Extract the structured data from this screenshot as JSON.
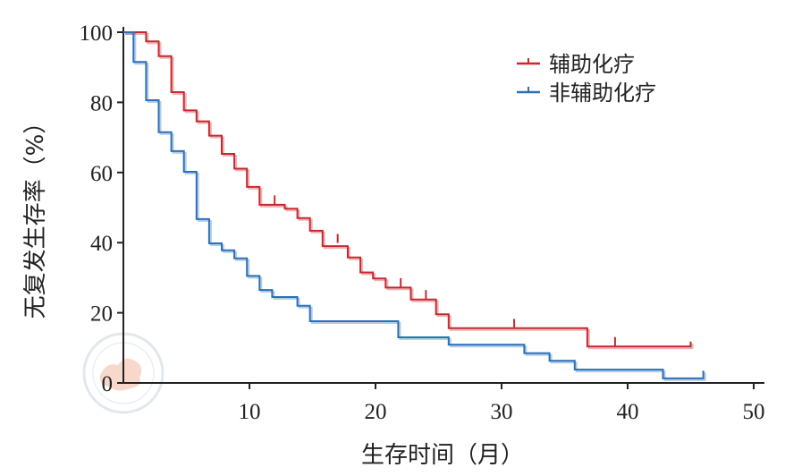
{
  "chart_data": {
    "type": "line",
    "subtype": "kaplan-meier step",
    "xlabel": "生存时间（月）",
    "ylabel": "无复发生存率（%）",
    "xlim": [
      0,
      50
    ],
    "ylim": [
      0,
      100
    ],
    "xticks": [
      10,
      20,
      30,
      40,
      50
    ],
    "yticks": [
      0,
      20,
      40,
      60,
      80,
      100
    ],
    "grid": false,
    "legend_position": "top-right",
    "series": [
      {
        "name": "辅助化疗",
        "color": "#c8282d",
        "steps": [
          [
            0,
            100
          ],
          [
            1.8,
            100
          ],
          [
            1.8,
            97.4
          ],
          [
            2.8,
            97.4
          ],
          [
            2.8,
            93.2
          ],
          [
            3.8,
            93.2
          ],
          [
            3.8,
            82.9
          ],
          [
            4.8,
            82.9
          ],
          [
            4.8,
            77.7
          ],
          [
            5.8,
            77.7
          ],
          [
            5.8,
            74.6
          ],
          [
            6.8,
            74.6
          ],
          [
            6.8,
            70.5
          ],
          [
            7.8,
            70.5
          ],
          [
            7.8,
            65.3
          ],
          [
            8.8,
            65.3
          ],
          [
            8.8,
            61.1
          ],
          [
            9.8,
            61.1
          ],
          [
            9.8,
            55.9
          ],
          [
            10.8,
            55.9
          ],
          [
            10.8,
            50.8
          ],
          [
            12.8,
            50.8
          ],
          [
            12.8,
            49.7
          ],
          [
            13.8,
            49.7
          ],
          [
            13.8,
            47.0
          ],
          [
            14.8,
            47.0
          ],
          [
            14.8,
            43.4
          ],
          [
            15.8,
            43.4
          ],
          [
            15.8,
            39.0
          ],
          [
            17.8,
            39.0
          ],
          [
            17.8,
            35.8
          ],
          [
            18.8,
            35.8
          ],
          [
            18.8,
            31.5
          ],
          [
            19.8,
            31.5
          ],
          [
            19.8,
            29.8
          ],
          [
            20.8,
            29.8
          ],
          [
            20.8,
            27.2
          ],
          [
            22.8,
            27.2
          ],
          [
            22.8,
            23.8
          ],
          [
            24.8,
            23.8
          ],
          [
            24.8,
            19.6
          ],
          [
            25.8,
            19.6
          ],
          [
            25.8,
            15.6
          ],
          [
            36.8,
            15.6
          ],
          [
            36.8,
            10.4
          ],
          [
            45,
            10.4
          ],
          [
            45,
            11.8
          ]
        ],
        "censored": [
          [
            12,
            52.2
          ],
          [
            17,
            41.2
          ],
          [
            22,
            28.6
          ],
          [
            24,
            25.2
          ],
          [
            31,
            17.0
          ],
          [
            39,
            11.8
          ]
        ]
      },
      {
        "name": "非辅助化疗",
        "color": "#2a6fb8",
        "steps": [
          [
            0,
            100
          ],
          [
            0.8,
            100
          ],
          [
            0.8,
            91.5
          ],
          [
            1.8,
            91.5
          ],
          [
            1.8,
            80.6
          ],
          [
            2.8,
            80.6
          ],
          [
            2.8,
            71.5
          ],
          [
            3.8,
            71.5
          ],
          [
            3.8,
            66.1
          ],
          [
            4.8,
            66.1
          ],
          [
            4.8,
            60.2
          ],
          [
            5.8,
            60.2
          ],
          [
            5.8,
            46.7
          ],
          [
            6.8,
            46.7
          ],
          [
            6.8,
            39.8
          ],
          [
            7.8,
            39.8
          ],
          [
            7.8,
            37.8
          ],
          [
            8.8,
            37.8
          ],
          [
            8.8,
            35.5
          ],
          [
            9.8,
            35.5
          ],
          [
            9.8,
            30.5
          ],
          [
            10.8,
            30.5
          ],
          [
            10.8,
            26.5
          ],
          [
            11.8,
            26.5
          ],
          [
            11.8,
            24.5
          ],
          [
            13.8,
            24.5
          ],
          [
            13.8,
            22.0
          ],
          [
            14.8,
            22.0
          ],
          [
            14.8,
            17.6
          ],
          [
            21.8,
            17.6
          ],
          [
            21.8,
            13.0
          ],
          [
            25.8,
            13.0
          ],
          [
            25.8,
            10.9
          ],
          [
            31.8,
            10.9
          ],
          [
            31.8,
            8.5
          ],
          [
            33.8,
            8.5
          ],
          [
            33.8,
            6.3
          ],
          [
            35.8,
            6.3
          ],
          [
            35.8,
            3.8
          ],
          [
            42.8,
            3.8
          ],
          [
            42.8,
            1.3
          ],
          [
            46,
            1.3
          ],
          [
            46,
            3.5
          ]
        ],
        "censored": []
      }
    ]
  }
}
